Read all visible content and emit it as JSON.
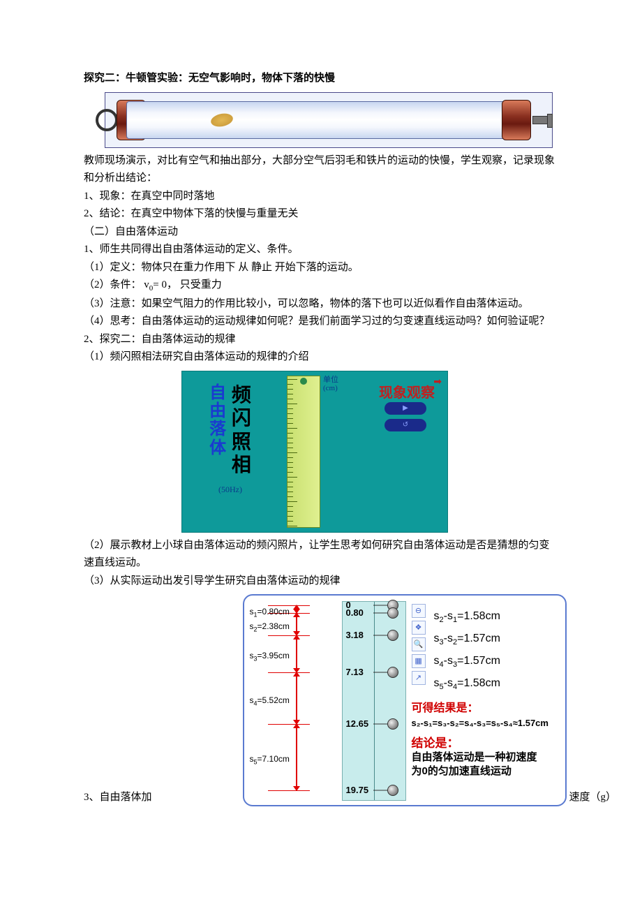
{
  "heading_inquiry2": "探究二：牛顿管实验：无空气影响时，物体下落的快慢",
  "newton_tube": {
    "background": "#eef2fb",
    "cap_color_top": "#d87a5a",
    "cap_color_bottom": "#8a3020",
    "feather_color": "#e0b040"
  },
  "para_teacher": "教师现场演示，对比有空气和抽出部分，大部分空气后羽毛和铁片的运动的快慢，学生观察，记录现象和分析出结论：",
  "line_phenomenon": "1、现象：在真空中同时落地",
  "line_conclusion1": "2、结论：在真空中物体下落的快慢与重量无关",
  "sec2_title": "（二）自由落体运动",
  "sec2_1": "1、师生共同得出自由落体运动的定义、条件。",
  "sec2_1_1": "（1）定义：物体只在重力作用下 从 静止 开始下落的运动。",
  "sec2_1_2_prefix": "（2）条件：   v",
  "sec2_1_2_sub": "0",
  "sec2_1_2_suffix": "= 0，    只受重力",
  "sec2_1_3": "（3）注意：如果空气阻力的作用比较小，可以忽略，物体的落下也可以近似看作自由落体运动。",
  "sec2_1_4": "（4）思考：自由落体运动的运动规律如何呢？是我们前面学习过的匀变速直线运动吗？如何验证呢？",
  "sec2_2": "2、探究二：自由落体运动的规律",
  "sec2_2_1": "（1）频闪照相法研究自由落体运动的规律的介绍",
  "strobe": {
    "bg": "#0e9a9a",
    "left_blue_chars": "自由落体",
    "left_black_chars": "频闪照相",
    "hz_label": "(50Hz)",
    "unit_label_1": "单位",
    "unit_label_2": "(cm)",
    "right_title": "现象观察",
    "btn_play": "▶",
    "btn_back": "↺"
  },
  "sec2_2_2": "（2）展示教材上小球自由落体运动的频闪照片，让学生思考如何研究自由落体运动是否是猜想的匀变速直线运动。",
  "sec2_2_3": "（3）从实际运动出发引导学生研究自由落体运动的规律",
  "data_figure": {
    "border_color": "#5a7ad0",
    "ruler_bg": "#c8ecec",
    "positions_cm": [
      0,
      0.8,
      3.18,
      7.13,
      12.65,
      19.75
    ],
    "position_labels": [
      "0",
      "0.80",
      "3.18",
      "7.13",
      "12.65",
      "19.75"
    ],
    "s_labels": [
      {
        "name": "s1",
        "sub": "1",
        "val": "=0.80cm"
      },
      {
        "name": "s2",
        "sub": "2",
        "val": "=2.38cm"
      },
      {
        "name": "s3",
        "sub": "3",
        "val": "=3.95cm"
      },
      {
        "name": "s4",
        "sub": "4",
        "val": "=5.52cm"
      },
      {
        "name": "s5",
        "sub": "5",
        "val": "=7.10cm"
      }
    ],
    "diffs": [
      {
        "a": "2",
        "b": "1",
        "val": "=1.58cm"
      },
      {
        "a": "3",
        "b": "2",
        "val": "=1.57cm"
      },
      {
        "a": "4",
        "b": "3",
        "val": "=1.57cm"
      },
      {
        "a": "5",
        "b": "4",
        "val": "=1.58cm"
      }
    ],
    "result_label": "可得结果是：",
    "eq_text": "s₂-s₁=s₃-s₂=s₄-s₃=s₅-s₄≈1.57cm",
    "concl_label": "结论是：",
    "concl_text1": "自由落体运动是一种初速度",
    "concl_text2": "为0的匀加速直线运动",
    "tool_icons": [
      "⊖",
      "❖",
      "🔍",
      "▦",
      "↗"
    ]
  },
  "line3_left": "3、自由落体加",
  "line3_right": "速度（g）"
}
